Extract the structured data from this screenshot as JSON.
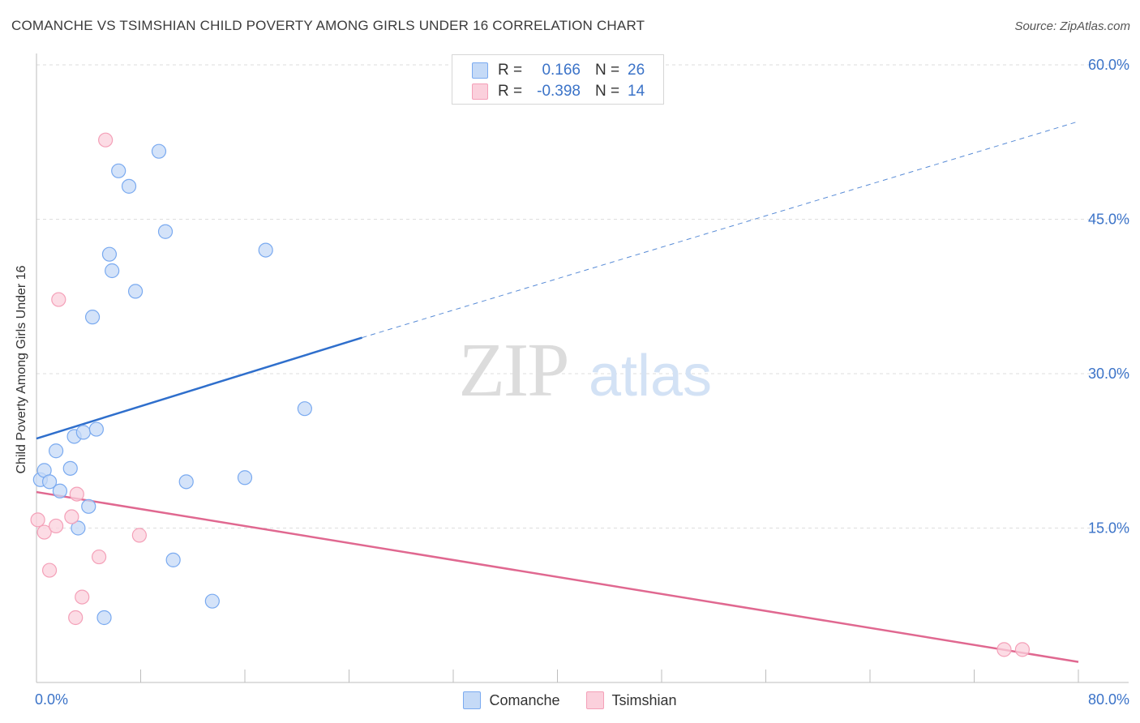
{
  "chart_data": {
    "type": "scatter",
    "title": "COMANCHE VS TSIMSHIAN CHILD POVERTY AMONG GIRLS UNDER 16 CORRELATION CHART",
    "source": "Source: ZipAtlas.com",
    "ylabel": "Child Poverty Among Girls Under 16",
    "xlabel": "",
    "xlim": [
      0,
      80
    ],
    "ylim": [
      0,
      60
    ],
    "x_tick_labels": [
      "0.0%",
      "80.0%"
    ],
    "y_ticks": [
      15,
      30,
      45,
      60
    ],
    "y_tick_labels": [
      "15.0%",
      "30.0%",
      "45.0%",
      "60.0%"
    ],
    "grid": true,
    "watermark": {
      "zip": "ZIP",
      "atlas": "atlas"
    },
    "series": [
      {
        "name": "Comanche",
        "color": "#7aaaf0",
        "fill": "#c5daf7",
        "line_color": "#2f6fcc",
        "r_label": "R =",
        "r_value": "0.166",
        "n_label": "N =",
        "n_value": "26",
        "points": [
          [
            0.3,
            19.7
          ],
          [
            0.6,
            20.6
          ],
          [
            1.0,
            19.5
          ],
          [
            1.5,
            22.5
          ],
          [
            1.8,
            18.6
          ],
          [
            2.6,
            20.8
          ],
          [
            2.9,
            23.9
          ],
          [
            3.2,
            15.0
          ],
          [
            3.6,
            24.3
          ],
          [
            4.0,
            17.1
          ],
          [
            4.3,
            35.5
          ],
          [
            4.6,
            24.6
          ],
          [
            5.2,
            6.3
          ],
          [
            5.6,
            41.6
          ],
          [
            5.8,
            40.0
          ],
          [
            6.3,
            49.7
          ],
          [
            7.1,
            48.2
          ],
          [
            7.6,
            38.0
          ],
          [
            9.4,
            51.6
          ],
          [
            9.9,
            43.8
          ],
          [
            10.5,
            11.9
          ],
          [
            11.5,
            19.5
          ],
          [
            13.5,
            7.9
          ],
          [
            16.0,
            19.9
          ],
          [
            17.6,
            42.0
          ],
          [
            20.6,
            26.6
          ]
        ],
        "trend": {
          "x0": 0,
          "y0": 23.7,
          "x1": 25,
          "y1": 33.5,
          "x_dash_end": 80,
          "y_dash_end": 54.5
        }
      },
      {
        "name": "Tsimshian",
        "color": "#f4a0b8",
        "fill": "#fbd0dc",
        "line_color": "#e06890",
        "r_label": "R =",
        "r_value": "-0.398",
        "n_label": "N =",
        "n_value": "14",
        "points": [
          [
            0.1,
            15.8
          ],
          [
            0.6,
            14.6
          ],
          [
            1.0,
            10.9
          ],
          [
            1.5,
            15.2
          ],
          [
            1.7,
            37.2
          ],
          [
            2.7,
            16.1
          ],
          [
            3.0,
            6.3
          ],
          [
            3.1,
            18.3
          ],
          [
            3.5,
            8.3
          ],
          [
            4.8,
            12.2
          ],
          [
            5.3,
            52.7
          ],
          [
            7.9,
            14.3
          ],
          [
            74.3,
            3.2
          ],
          [
            75.7,
            3.2
          ]
        ],
        "trend": {
          "x0": 0,
          "y0": 18.5,
          "x1": 80,
          "y1": 2.0
        }
      }
    ]
  }
}
